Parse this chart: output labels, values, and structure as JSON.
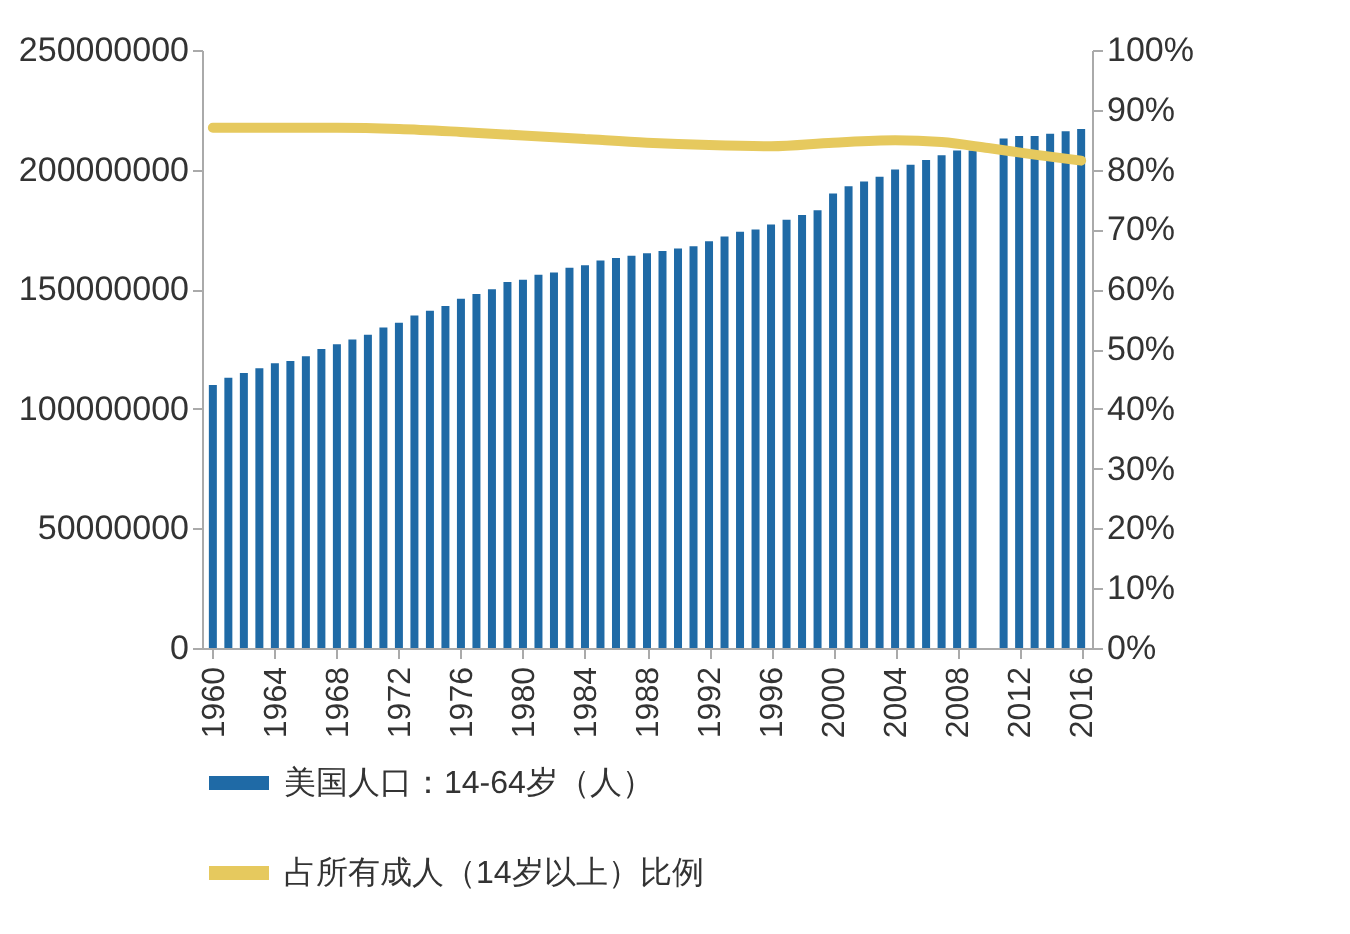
{
  "chart_data": {
    "type": "bar",
    "x": [
      1960,
      1961,
      1962,
      1963,
      1964,
      1965,
      1966,
      1967,
      1968,
      1969,
      1970,
      1971,
      1972,
      1973,
      1974,
      1975,
      1976,
      1977,
      1978,
      1979,
      1980,
      1981,
      1982,
      1983,
      1984,
      1985,
      1986,
      1987,
      1988,
      1989,
      1990,
      1991,
      1992,
      1993,
      1994,
      1995,
      1996,
      1997,
      1998,
      1999,
      2000,
      2001,
      2002,
      2003,
      2004,
      2005,
      2006,
      2007,
      2008,
      2009,
      2010,
      2011,
      2012,
      2013,
      2014,
      2015,
      2016
    ],
    "xlim": [
      1959.3,
      2016.7
    ],
    "xticks": [
      1960,
      1964,
      1968,
      1972,
      1976,
      1980,
      1984,
      1988,
      1992,
      1996,
      2000,
      2004,
      2008,
      2012,
      2016
    ],
    "ylim": [
      0,
      250000000
    ],
    "yticks": [
      0,
      50000000,
      100000000,
      150000000,
      200000000,
      250000000
    ],
    "y2lim": [
      0,
      100
    ],
    "y2ticks": [
      {
        "value": 0,
        "label": "0%"
      },
      {
        "value": 10,
        "label": "10%"
      },
      {
        "value": 20,
        "label": "20%"
      },
      {
        "value": 30,
        "label": "30%"
      },
      {
        "value": 40,
        "label": "40%"
      },
      {
        "value": 50,
        "label": "50%"
      },
      {
        "value": 60,
        "label": "60%"
      },
      {
        "value": 70,
        "label": "70%"
      },
      {
        "value": 80,
        "label": "80%"
      },
      {
        "value": 90,
        "label": "90%"
      },
      {
        "value": 100,
        "label": "100%"
      }
    ],
    "legend": "bottom",
    "grid": false,
    "series": [
      {
        "name": "美国人口：14-64岁（人）",
        "color": "#1f6aa6",
        "values": [
          110000000,
          113000000,
          115000000,
          117000000,
          119000000,
          120000000,
          122000000,
          125000000,
          127000000,
          129000000,
          131000000,
          134000000,
          136000000,
          139000000,
          141000000,
          143000000,
          146000000,
          148000000,
          150000000,
          153000000,
          154000000,
          156000000,
          157000000,
          159000000,
          160000000,
          162000000,
          163000000,
          164000000,
          165000000,
          166000000,
          167000000,
          168000000,
          170000000,
          172000000,
          174000000,
          175000000,
          177000000,
          179000000,
          181000000,
          183000000,
          190000000,
          193000000,
          195000000,
          197000000,
          200000000,
          202000000,
          204000000,
          206000000,
          208000000,
          208000000,
          null,
          213000000,
          214000000,
          214000000,
          215000000,
          216000000,
          217000000
        ]
      },
      {
        "name": "占所有成人（14岁以上）比例",
        "type": "line",
        "axis": "y2",
        "color": "#e6c95e",
        "x": [
          1960,
          1968,
          1972,
          1976,
          1980,
          1984,
          1988,
          1992,
          1996,
          2000,
          2004,
          2007,
          2010,
          2013,
          2016
        ],
        "values": [
          87.0,
          87.0,
          86.8,
          86.3,
          85.7,
          85.1,
          84.5,
          84.1,
          83.9,
          84.5,
          84.9,
          84.6,
          83.6,
          82.5,
          81.5
        ]
      }
    ]
  }
}
